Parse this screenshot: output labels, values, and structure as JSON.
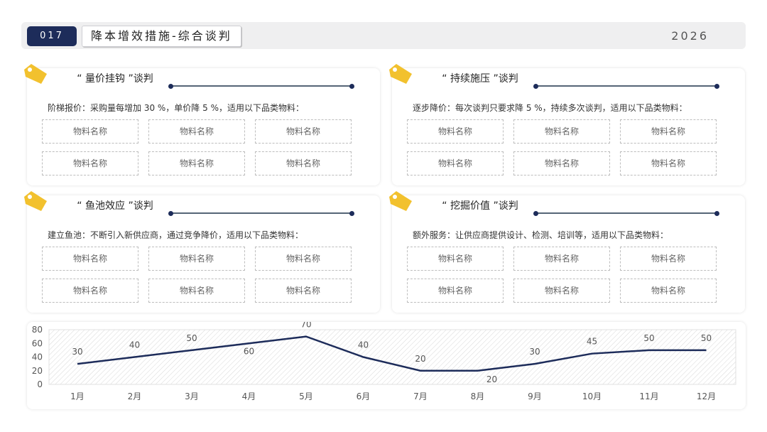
{
  "header": {
    "page_number": "017",
    "title": "降本增效措施-综合谈判",
    "year": "2026"
  },
  "cards": [
    {
      "title": "“ 量价挂钩 ”谈判",
      "description": "阶梯报价：采购量每增加 30 %，单价降 5 %，适用以下品类物料：",
      "materials": [
        "物料名称",
        "物料名称",
        "物料名称",
        "物料名称",
        "物料名称",
        "物料名称"
      ]
    },
    {
      "title": "“ 持续施压 ”谈判",
      "description": "逐步降价：每次谈判只要求降 5 %，持续多次谈判，适用以下品类物料：",
      "materials": [
        "物料名称",
        "物料名称",
        "物料名称",
        "物料名称",
        "物料名称",
        "物料名称"
      ]
    },
    {
      "title": "“ 鱼池效应 ”谈判",
      "description": "建立鱼池：不断引入新供应商，通过竞争降价，适用以下品类物料：",
      "materials": [
        "物料名称",
        "物料名称",
        "物料名称",
        "物料名称",
        "物料名称",
        "物料名称"
      ]
    },
    {
      "title": "“ 挖掘价值 ”谈判",
      "description": "额外服务：让供应商提供设计、检测、培训等，适用以下品类物料：",
      "materials": [
        "物料名称",
        "物料名称",
        "物料名称",
        "物料名称",
        "物料名称",
        "物料名称"
      ]
    }
  ],
  "colors": {
    "accent": "#1d2c5a",
    "tag": "#f2c12e",
    "line": "#1d2c5a"
  },
  "chart_data": {
    "type": "line",
    "categories": [
      "1月",
      "2月",
      "3月",
      "4月",
      "5月",
      "6月",
      "7月",
      "8月",
      "9月",
      "10月",
      "11月",
      "12月"
    ],
    "series": [
      {
        "values": [
          30,
          40,
          50,
          60,
          70,
          40,
          20,
          20,
          30,
          45,
          50,
          50
        ]
      }
    ],
    "ylim": [
      0,
      80
    ],
    "yticks": [
      0,
      20,
      40,
      60,
      80
    ],
    "grid": false,
    "legend": "none",
    "title": "",
    "xlabel": "",
    "ylabel": ""
  }
}
